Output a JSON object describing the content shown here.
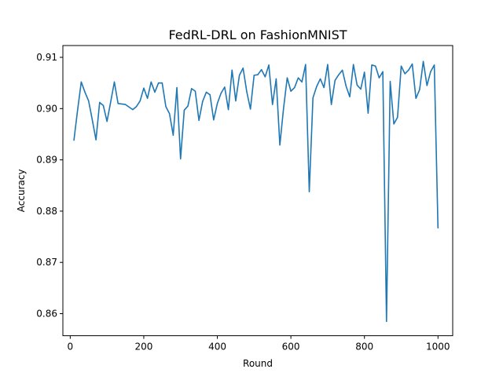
{
  "chart_data": {
    "type": "line",
    "title": "FedRL-DRL on FashionMNIST",
    "xlabel": "Round",
    "ylabel": "Accuracy",
    "xlim": [
      -20,
      1040
    ],
    "ylim": [
      0.8557,
      0.9123
    ],
    "xticks": [
      0,
      200,
      400,
      600,
      800,
      1000
    ],
    "xtick_labels": [
      "0",
      "200",
      "400",
      "600",
      "800",
      "1000"
    ],
    "yticks": [
      0.86,
      0.87,
      0.88,
      0.89,
      0.9,
      0.91
    ],
    "ytick_labels": [
      "0.86",
      "0.87",
      "0.88",
      "0.89",
      "0.90",
      "0.91"
    ],
    "grid": false,
    "legend": "none",
    "series": [
      {
        "color": "#1f77b4",
        "x": [
          10,
          20,
          30,
          40,
          50,
          60,
          70,
          80,
          90,
          100,
          110,
          120,
          130,
          140,
          150,
          160,
          170,
          180,
          190,
          200,
          210,
          220,
          230,
          240,
          250,
          260,
          270,
          280,
          290,
          300,
          310,
          320,
          330,
          340,
          350,
          360,
          370,
          380,
          390,
          400,
          410,
          420,
          430,
          440,
          450,
          460,
          470,
          480,
          490,
          500,
          510,
          520,
          530,
          540,
          550,
          560,
          570,
          580,
          590,
          600,
          610,
          620,
          630,
          640,
          650,
          660,
          670,
          680,
          690,
          700,
          710,
          720,
          730,
          740,
          750,
          760,
          770,
          780,
          790,
          800,
          810,
          820,
          830,
          840,
          850,
          860,
          870,
          880,
          890,
          900,
          910,
          920,
          930,
          940,
          950,
          960,
          970,
          980,
          990,
          1000
        ],
        "y": [
          0.8938,
          0.8997,
          0.9052,
          0.9032,
          0.9015,
          0.8978,
          0.8939,
          0.9012,
          0.9006,
          0.8975,
          0.9013,
          0.9052,
          0.901,
          0.9009,
          0.9008,
          0.9003,
          0.8998,
          0.9004,
          0.9015,
          0.904,
          0.902,
          0.9052,
          0.9032,
          0.905,
          0.905,
          0.9004,
          0.899,
          0.8948,
          0.9041,
          0.8902,
          0.8997,
          0.9005,
          0.9039,
          0.9034,
          0.8977,
          0.9014,
          0.9032,
          0.9027,
          0.8978,
          0.901,
          0.903,
          0.9042,
          0.8998,
          0.9075,
          0.9015,
          0.9065,
          0.9079,
          0.9033,
          0.8999,
          0.9065,
          0.9066,
          0.9076,
          0.9062,
          0.9085,
          0.9008,
          0.9058,
          0.8929,
          0.9,
          0.906,
          0.9034,
          0.9041,
          0.906,
          0.9052,
          0.9086,
          0.8838,
          0.9021,
          0.9043,
          0.9058,
          0.9041,
          0.9086,
          0.9008,
          0.9055,
          0.9066,
          0.9075,
          0.9044,
          0.9023,
          0.9086,
          0.9046,
          0.9038,
          0.9071,
          0.8991,
          0.9085,
          0.9083,
          0.906,
          0.9072,
          0.8585,
          0.9053,
          0.897,
          0.8983,
          0.9083,
          0.9068,
          0.9075,
          0.9087,
          0.902,
          0.9037,
          0.9092,
          0.9045,
          0.9072,
          0.9085,
          0.8767
        ]
      }
    ]
  }
}
